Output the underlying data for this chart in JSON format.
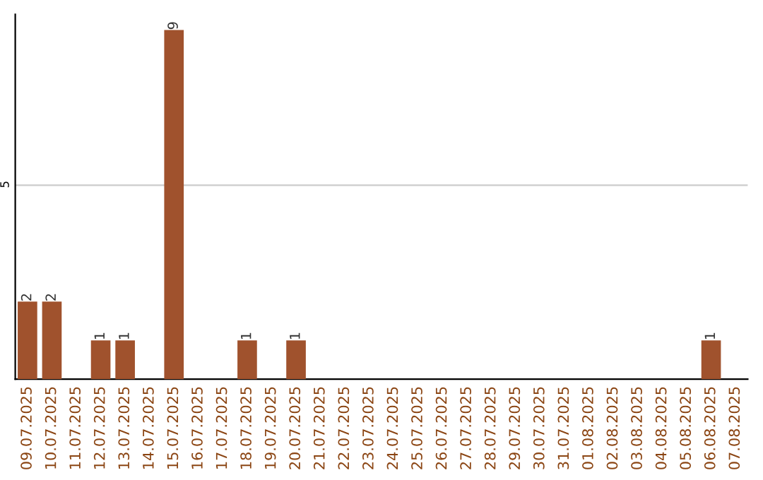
{
  "chart_data": {
    "type": "bar",
    "categories": [
      "09.07.2025",
      "10.07.2025",
      "11.07.2025",
      "12.07.2025",
      "13.07.2025",
      "14.07.2025",
      "15.07.2025",
      "16.07.2025",
      "17.07.2025",
      "18.07.2025",
      "19.07.2025",
      "20.07.2025",
      "21.07.2025",
      "22.07.2025",
      "23.07.2025",
      "24.07.2025",
      "25.07.2025",
      "26.07.2025",
      "27.07.2025",
      "28.07.2025",
      "29.07.2025",
      "30.07.2025",
      "31.07.2025",
      "01.08.2025",
      "02.08.2025",
      "03.08.2025",
      "04.08.2025",
      "05.08.2025",
      "06.08.2025",
      "07.08.2025"
    ],
    "values": [
      2,
      2,
      0,
      1,
      1,
      0,
      9,
      0,
      0,
      1,
      0,
      1,
      0,
      0,
      0,
      0,
      0,
      0,
      0,
      0,
      0,
      0,
      0,
      0,
      0,
      0,
      0,
      0,
      1,
      0
    ],
    "value_labels": [
      "2",
      "2",
      null,
      "1",
      "1",
      null,
      "9",
      null,
      null,
      "1",
      null,
      "1",
      null,
      null,
      null,
      null,
      null,
      null,
      null,
      null,
      null,
      null,
      null,
      null,
      null,
      null,
      null,
      null,
      "1",
      null
    ],
    "color": "#a0522d",
    "ylim": [
      0,
      9.4
    ],
    "yticks": [
      5
    ],
    "grid": "y"
  }
}
